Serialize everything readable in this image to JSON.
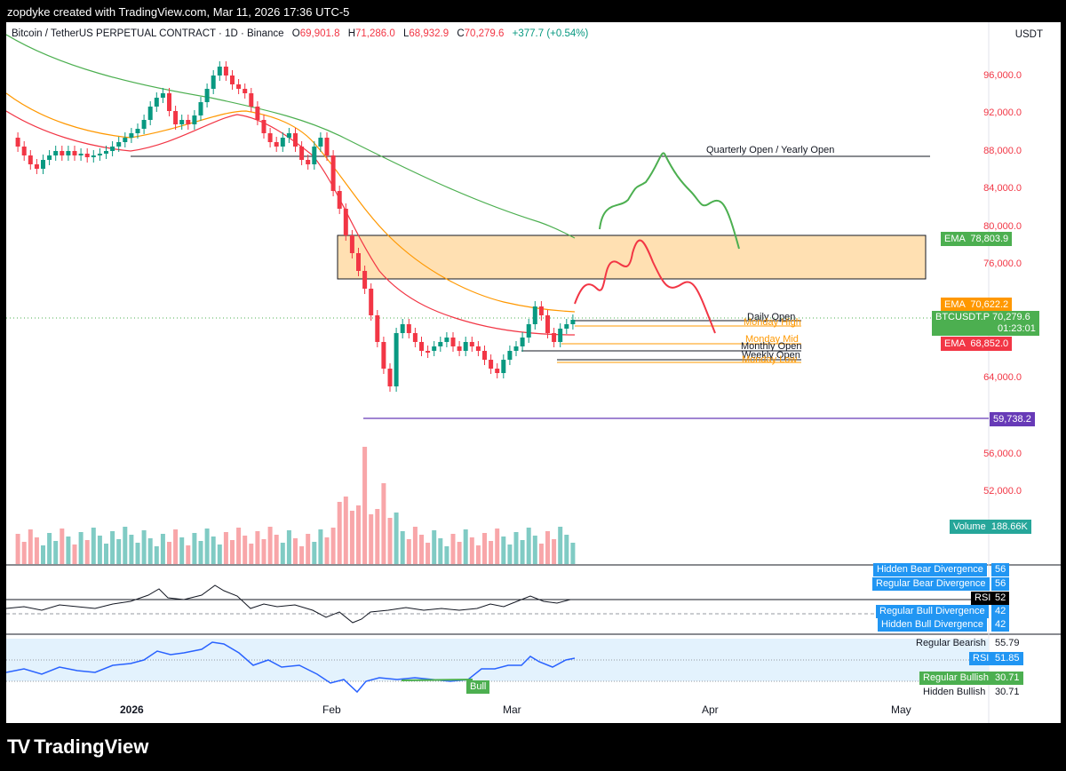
{
  "header": {
    "author_line": "zopdyke created with TradingView.com, Mar 11, 2026 17:36 UTC-5"
  },
  "legend": {
    "title": "Bitcoin / TetherUS PERPETUAL CONTRACT · 1D · Binance",
    "open_key": "O",
    "open": "69,901.8",
    "high_key": "H",
    "high": "71,286.0",
    "low_key": "L",
    "low": "68,932.9",
    "close_key": "C",
    "close": "70,279.6",
    "change": "+377.7 (+0.54%)"
  },
  "currency": "USDT",
  "price_axis": [
    "96,000.0",
    "92,000.0",
    "88,000.0",
    "84,000.0",
    "80,000.0",
    "76,000.0",
    "64,000.0",
    "56,000.0",
    "52,000.0"
  ],
  "tags": {
    "ema_green": {
      "label": "EMA",
      "value": "78,803.9"
    },
    "ema_orange": {
      "label": "EMA",
      "value": "70,622.2"
    },
    "symbol": {
      "label": "BTCUSDT.P",
      "value": "70,279.6",
      "timer": "01:23:01"
    },
    "ema_red": {
      "label": "EMA",
      "value": "68,852.0"
    },
    "low_level": "59,738.2",
    "volume": {
      "label": "Volume",
      "value": "188.66K"
    }
  },
  "level_labels": {
    "quarterly": "Quarterly Open / Yearly Open",
    "daily_open": "Daily Open",
    "monday_high": "Monday High",
    "monday_mid": "Monday Mid",
    "monthly_open": "Monthly Open",
    "weekly_open": "Weekly Open",
    "monday_low": "Monday Low"
  },
  "rsi_panel": {
    "hidden_bear": {
      "label": "Hidden Bear Divergence",
      "value": "56"
    },
    "regular_bear": {
      "label": "Regular Bear Divergence",
      "value": "56"
    },
    "rsi": {
      "label": "RSI",
      "value": "52"
    },
    "regular_bull": {
      "label": "Regular Bull Divergence",
      "value": "42"
    },
    "hidden_bull": {
      "label": "Hidden Bull Divergence",
      "value": "42"
    }
  },
  "rsi2_panel": {
    "regular_bearish": {
      "label": "Regular Bearish",
      "value": "55.79"
    },
    "rsi": {
      "label": "RSI",
      "value": "51.85"
    },
    "regular_bullish": {
      "label": "Regular Bullish",
      "value": "30.71"
    },
    "hidden_bullish": {
      "label": "Hidden Bullish",
      "value": "30.71"
    },
    "bull_badge": "Bull"
  },
  "time_axis": [
    "2026",
    "Feb",
    "Mar",
    "Apr",
    "May"
  ],
  "footer": {
    "brand": "TradingView",
    "logo": "TV"
  },
  "colors": {
    "up": "#089981",
    "down": "#f23645",
    "ema_fast": "#f23645",
    "ema_mid": "#ff9800",
    "ema_slow": "#4caf50",
    "zone": "#ffe0b2",
    "low_line": "#673ab7",
    "rsi": "#2962ff"
  }
}
